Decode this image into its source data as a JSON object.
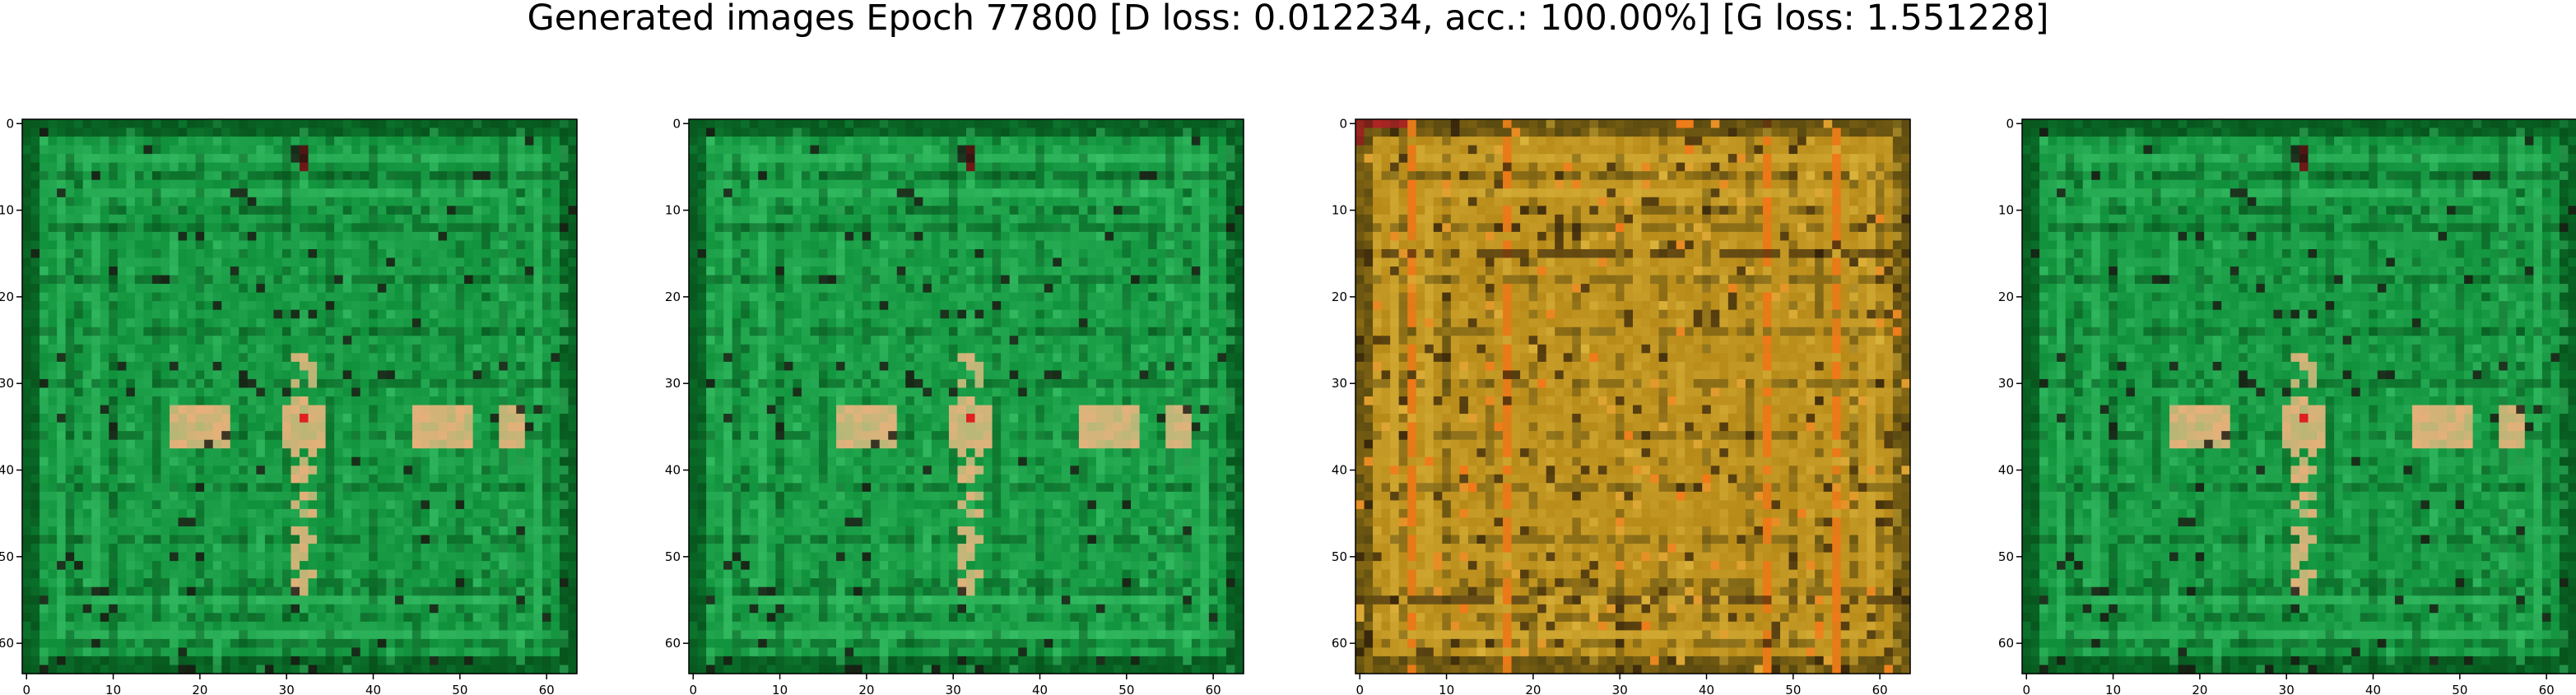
{
  "figure": {
    "title": "Generated images Epoch 77800 [D loss: 0.012234, acc.: 100.00%] [G loss: 1.551228]"
  },
  "axis_ticks": [
    "0",
    "10",
    "20",
    "30",
    "40",
    "50",
    "60"
  ],
  "image_grid_size": 64,
  "panels": [
    {
      "name": "generated-image-1",
      "palette": "green",
      "colors": {
        "base": "#0f8f3a",
        "dark": "#07551d",
        "light": "#3bc46a",
        "hot": "#e8b07a",
        "red": "#e02020",
        "black": "#1a1410"
      }
    },
    {
      "name": "generated-image-2",
      "palette": "green",
      "colors": {
        "base": "#11933d",
        "dark": "#07561e",
        "light": "#3ec86d",
        "hot": "#e4b27c",
        "red": "#e02020",
        "black": "#1a1410"
      }
    },
    {
      "name": "generated-image-3",
      "palette": "orange",
      "colors": {
        "base": "#b88a18",
        "dark": "#5a4a10",
        "light": "#d8b23a",
        "hot": "#f07818",
        "red": "#c02828",
        "black": "#2a1a08"
      }
    },
    {
      "name": "generated-image-4",
      "palette": "green",
      "colors": {
        "base": "#0f8f3a",
        "dark": "#07551d",
        "light": "#3bc46a",
        "hot": "#e8b07a",
        "red": "#e02020",
        "black": "#1a1410"
      }
    }
  ]
}
